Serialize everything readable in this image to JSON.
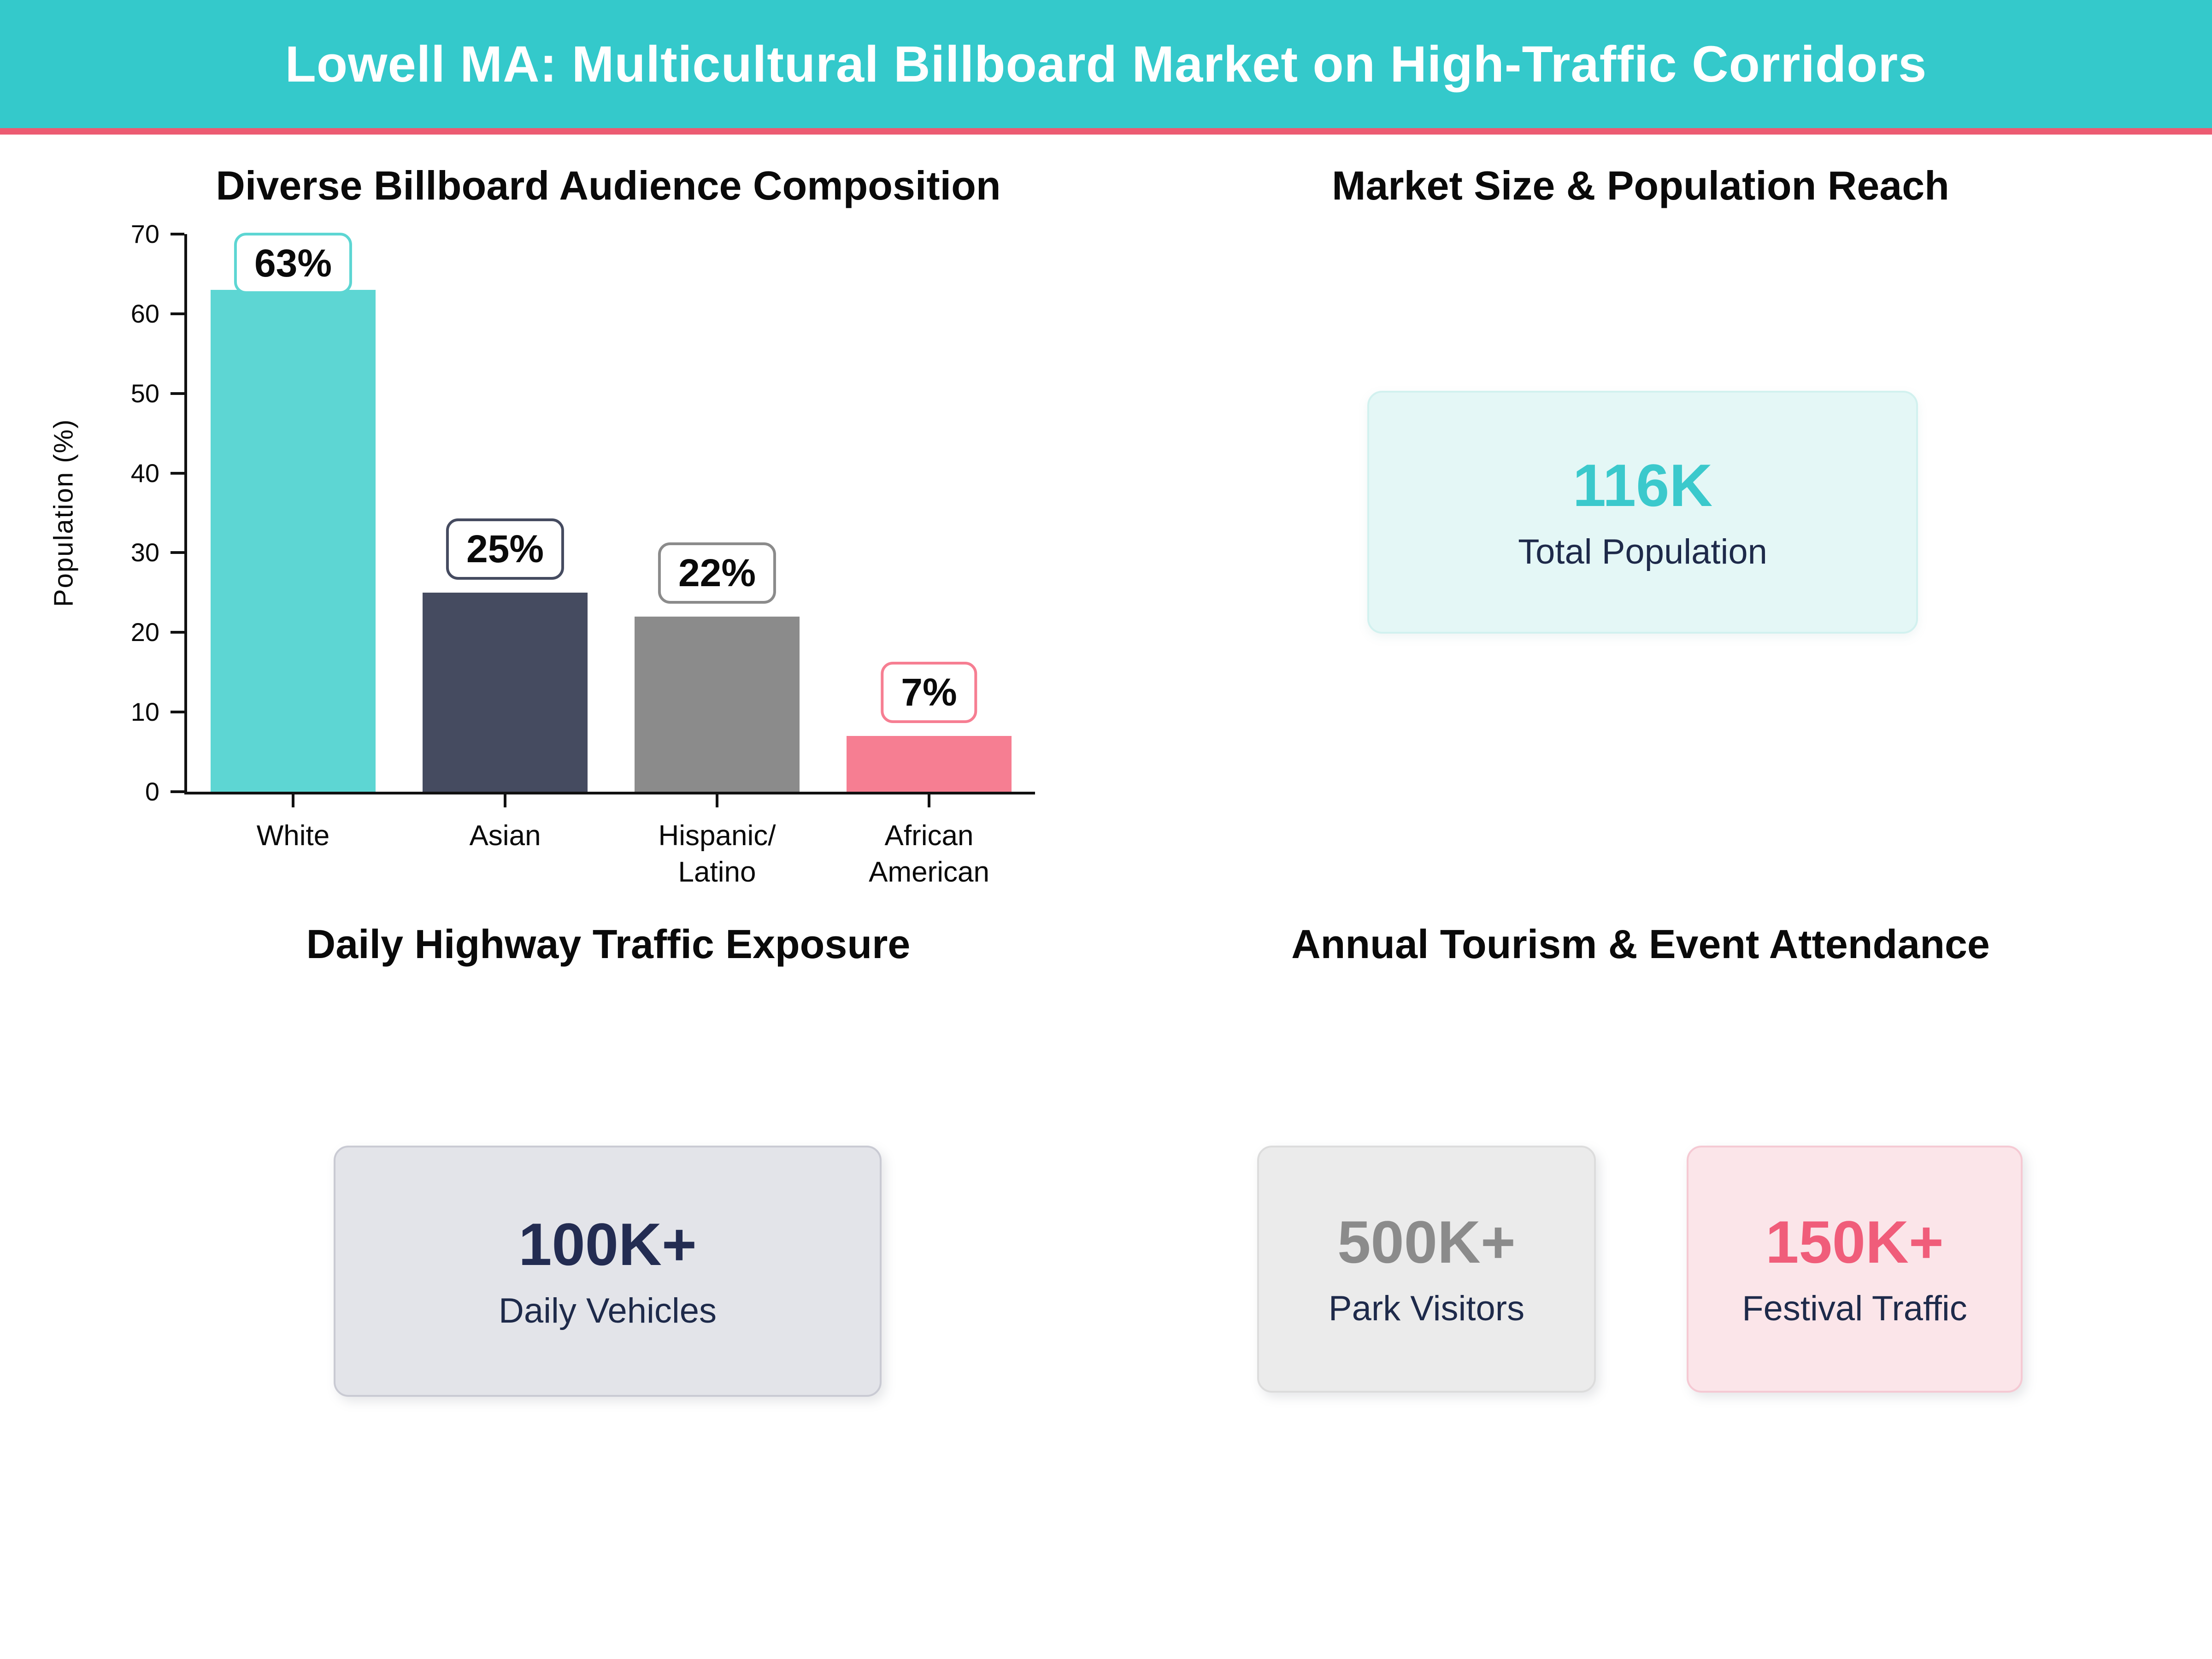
{
  "header": {
    "title": "Lowell MA: Multicultural Billboard Market on High-Traffic Corridors",
    "background_color": "#34C9CB",
    "accent_stripe_color": "#EC5B72"
  },
  "chart_data": {
    "type": "bar",
    "title": "Diverse Billboard Audience Composition",
    "categories": [
      "White",
      "Asian",
      "Hispanic/\nLatino",
      "African\nAmerican"
    ],
    "values": [
      63,
      25,
      22,
      7
    ],
    "data_labels": [
      "63%",
      "25%",
      "22%",
      "7%"
    ],
    "bar_colors": [
      "#5DD6D3",
      "#454B60",
      "#8B8B8B",
      "#F67E92"
    ],
    "xlabel": "",
    "ylabel": "Population (%)",
    "ylim": [
      0,
      70
    ],
    "yticks": [
      0,
      10,
      20,
      30,
      40,
      50,
      60,
      70
    ],
    "grid": false,
    "legend_position": "none"
  },
  "sections": {
    "market": {
      "title": "Market Size & Population Reach",
      "stat": {
        "value": "116K",
        "label": "Total Population",
        "value_color": "#3BC9CC",
        "bg": "#E4F7F6",
        "border": "#D2F1EF"
      }
    },
    "traffic": {
      "title": "Daily Highway Traffic Exposure",
      "stat": {
        "value": "100K+",
        "label": "Daily Vehicles",
        "value_color": "#232C52",
        "bg": "#E3E4E9",
        "border": "#C9CAD3"
      }
    },
    "tourism": {
      "title": "Annual Tourism & Event Attendance",
      "stats": [
        {
          "value": "500K+",
          "label": "Park Visitors",
          "value_color": "#8B8B8B",
          "bg": "#EBEBEB",
          "border": "#DCDCDC"
        },
        {
          "value": "150K+",
          "label": "Festival Traffic",
          "value_color": "#F05D7A",
          "bg": "#FBE5E9",
          "border": "#F5C9D3"
        }
      ]
    }
  },
  "text_colors": {
    "stat_sublabel": "#1E2A4A",
    "titles": "#0A0A0A"
  }
}
